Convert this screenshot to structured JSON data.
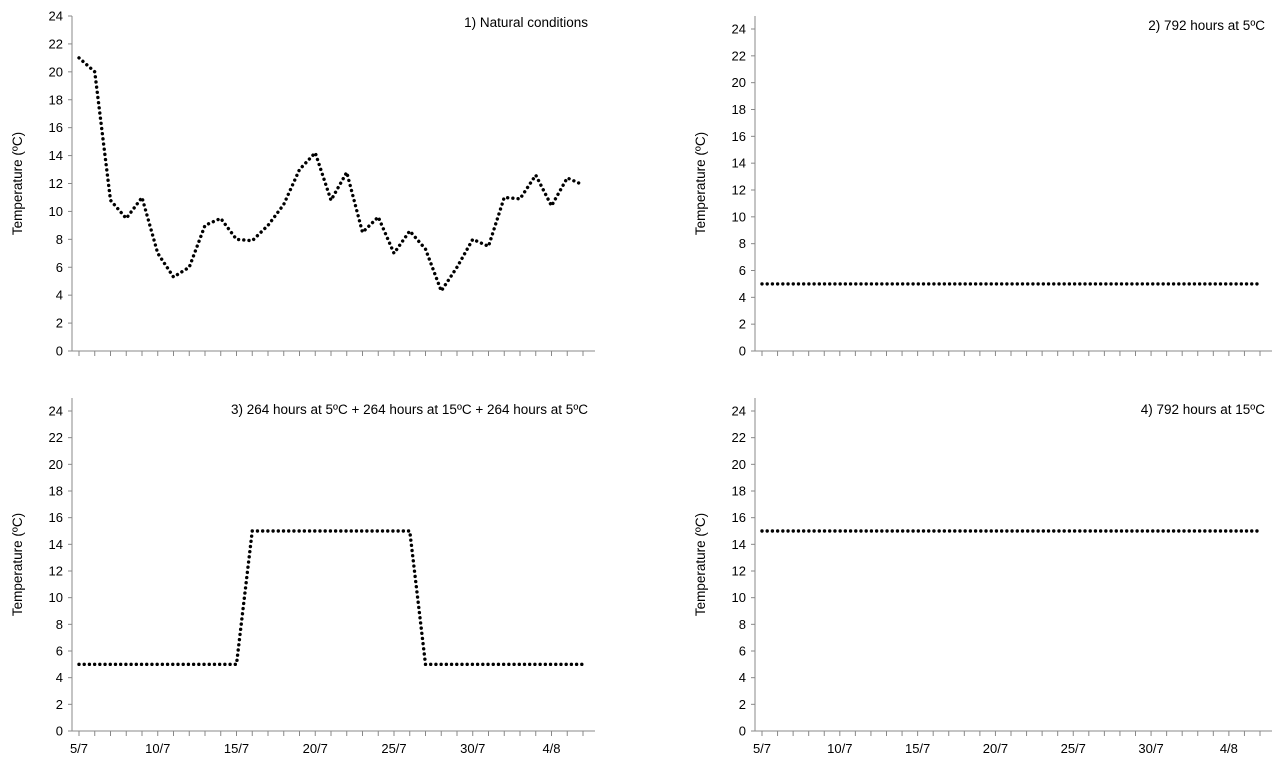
{
  "figure": {
    "background": "#ffffff",
    "line_color": "#000000"
  },
  "chart_data": [
    {
      "type": "line",
      "title": "1) Natural conditions",
      "xlabel": "",
      "ylabel": "Temperature (ºC)",
      "ylim": [
        0,
        24
      ],
      "yticks": [
        0,
        2,
        4,
        6,
        8,
        10,
        12,
        14,
        16,
        18,
        20,
        22,
        24
      ],
      "xticklabels": [],
      "grid": false,
      "line_style": "dotted",
      "series": [
        {
          "x": [
            "5/7",
            "6/7",
            "7/7",
            "8/7",
            "9/7",
            "10/7",
            "11/7",
            "12/7",
            "13/7",
            "14/7",
            "15/7",
            "16/7",
            "17/7",
            "18/7",
            "19/7",
            "20/7",
            "21/7",
            "22/7",
            "23/7",
            "24/7",
            "25/7",
            "26/7",
            "27/7",
            "28/7",
            "29/7",
            "30/7",
            "31/7",
            "1/8",
            "2/8",
            "3/8",
            "4/8",
            "5/8",
            "6/8"
          ],
          "values": [
            21,
            20,
            10.8,
            9.5,
            11,
            7,
            5.3,
            6,
            9,
            9.5,
            8,
            7.9,
            9,
            10.5,
            13,
            14.2,
            10.8,
            12.8,
            8.5,
            9.6,
            7,
            8.6,
            7.3,
            4.3,
            6,
            8,
            7.5,
            11,
            10.9,
            12.6,
            10.4,
            12.4,
            11.9
          ]
        }
      ]
    },
    {
      "type": "line",
      "title": "2) 792 hours at 5ºC",
      "xlabel": "",
      "ylabel": "Temperature (ºC)",
      "ylim": [
        0,
        24
      ],
      "yticks": [
        0,
        2,
        4,
        6,
        8,
        10,
        12,
        14,
        16,
        18,
        20,
        22,
        24
      ],
      "xticklabels": [],
      "grid": false,
      "line_style": "dotted",
      "series": [
        {
          "x": [
            "5/7",
            "6/7",
            "7/7",
            "8/7",
            "9/7",
            "10/7",
            "11/7",
            "12/7",
            "13/7",
            "14/7",
            "15/7",
            "16/7",
            "17/7",
            "18/7",
            "19/7",
            "20/7",
            "21/7",
            "22/7",
            "23/7",
            "24/7",
            "25/7",
            "26/7",
            "27/7",
            "28/7",
            "29/7",
            "30/7",
            "31/7",
            "1/8",
            "2/8",
            "3/8",
            "4/8",
            "5/8",
            "6/8"
          ],
          "values": [
            5,
            5,
            5,
            5,
            5,
            5,
            5,
            5,
            5,
            5,
            5,
            5,
            5,
            5,
            5,
            5,
            5,
            5,
            5,
            5,
            5,
            5,
            5,
            5,
            5,
            5,
            5,
            5,
            5,
            5,
            5,
            5,
            5
          ]
        }
      ]
    },
    {
      "type": "line",
      "title": "3) 264 hours at 5ºC + 264 hours at 15ºC + 264 hours at 5ºC",
      "xlabel": "",
      "ylabel": "Temperature (ºC)",
      "ylim": [
        0,
        24
      ],
      "yticks": [
        0,
        2,
        4,
        6,
        8,
        10,
        12,
        14,
        16,
        18,
        20,
        22,
        24
      ],
      "xticklabels": [
        "5/7",
        "10/7",
        "15/7",
        "20/7",
        "25/7",
        "30/7",
        "4/8"
      ],
      "grid": false,
      "line_style": "dotted",
      "series": [
        {
          "x": [
            "5/7",
            "6/7",
            "7/7",
            "8/7",
            "9/7",
            "10/7",
            "11/7",
            "12/7",
            "13/7",
            "14/7",
            "15/7",
            "16/7",
            "17/7",
            "18/7",
            "19/7",
            "20/7",
            "21/7",
            "22/7",
            "23/7",
            "24/7",
            "25/7",
            "26/7",
            "27/7",
            "28/7",
            "29/7",
            "30/7",
            "31/7",
            "1/8",
            "2/8",
            "3/8",
            "4/8",
            "5/8",
            "6/8"
          ],
          "values": [
            5,
            5,
            5,
            5,
            5,
            5,
            5,
            5,
            5,
            5,
            5,
            15,
            15,
            15,
            15,
            15,
            15,
            15,
            15,
            15,
            15,
            15,
            5,
            5,
            5,
            5,
            5,
            5,
            5,
            5,
            5,
            5,
            5
          ]
        }
      ]
    },
    {
      "type": "line",
      "title": "4) 792 hours at 15ºC",
      "xlabel": "",
      "ylabel": "Temperature (ºC)",
      "ylim": [
        0,
        24
      ],
      "yticks": [
        0,
        2,
        4,
        6,
        8,
        10,
        12,
        14,
        16,
        18,
        20,
        22,
        24
      ],
      "xticklabels": [
        "5/7",
        "10/7",
        "15/7",
        "20/7",
        "25/7",
        "30/7",
        "4/8"
      ],
      "grid": false,
      "line_style": "dotted",
      "series": [
        {
          "x": [
            "5/7",
            "6/7",
            "7/7",
            "8/7",
            "9/7",
            "10/7",
            "11/7",
            "12/7",
            "13/7",
            "14/7",
            "15/7",
            "16/7",
            "17/7",
            "18/7",
            "19/7",
            "20/7",
            "21/7",
            "22/7",
            "23/7",
            "24/7",
            "25/7",
            "26/7",
            "27/7",
            "28/7",
            "29/7",
            "30/7",
            "31/7",
            "1/8",
            "2/8",
            "3/8",
            "4/8",
            "5/8",
            "6/8"
          ],
          "values": [
            15,
            15,
            15,
            15,
            15,
            15,
            15,
            15,
            15,
            15,
            15,
            15,
            15,
            15,
            15,
            15,
            15,
            15,
            15,
            15,
            15,
            15,
            15,
            15,
            15,
            15,
            15,
            15,
            15,
            15,
            15,
            15,
            15
          ]
        }
      ]
    }
  ]
}
